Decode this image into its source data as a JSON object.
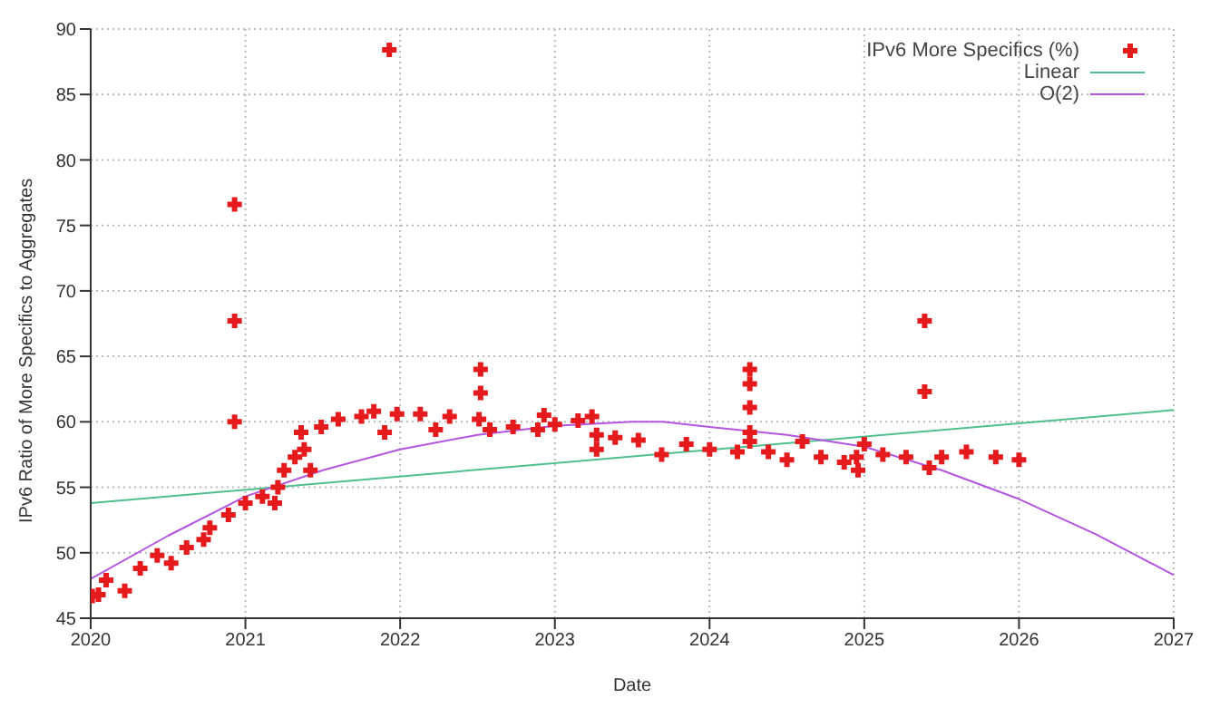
{
  "chart_data": {
    "type": "scatter",
    "xlabel": "Date",
    "ylabel": "IPv6 Ratio of More Specifics to Aggregates",
    "xlim": [
      2020,
      2027
    ],
    "xticks": [
      2020,
      2021,
      2022,
      2023,
      2024,
      2025,
      2026,
      2027
    ],
    "ylim": [
      45,
      90
    ],
    "yticks": [
      45,
      50,
      55,
      60,
      65,
      70,
      75,
      80,
      85,
      90
    ],
    "grid": true,
    "legend": "top right",
    "series": [
      {
        "name": "IPv6 More Specifics (%)",
        "marker": "cross",
        "color": "#e41a1c",
        "x": [
          2020.01,
          2020.05,
          2020.1,
          2020.22,
          2020.32,
          2020.43,
          2020.52,
          2020.62,
          2020.73,
          2020.77,
          2020.89,
          2020.93,
          2020.93,
          2020.93,
          2021.0,
          2021.11,
          2021.19,
          2021.21,
          2021.25,
          2021.32,
          2021.36,
          2021.38,
          2021.42,
          2021.49,
          2021.6,
          2021.75,
          2021.83,
          2021.9,
          2021.93,
          2021.98,
          2022.13,
          2022.23,
          2022.32,
          2022.51,
          2022.52,
          2022.52,
          2022.58,
          2022.73,
          2022.89,
          2022.93,
          2023.0,
          2023.15,
          2023.24,
          2023.27,
          2023.27,
          2023.39,
          2023.54,
          2023.69,
          2023.85,
          2024.0,
          2024.18,
          2024.26,
          2024.26,
          2024.26,
          2024.26,
          2024.26,
          2024.38,
          2024.5,
          2024.6,
          2024.72,
          2024.87,
          2024.95,
          2024.96,
          2025.0,
          2025.12,
          2025.27,
          2025.39,
          2025.39,
          2025.42,
          2025.5,
          2025.66,
          2025.85,
          2026.0
        ],
        "values": [
          46.7,
          46.8,
          47.9,
          47.1,
          48.8,
          49.8,
          49.2,
          50.4,
          51.0,
          51.9,
          52.9,
          76.6,
          67.7,
          60.0,
          53.8,
          54.3,
          53.8,
          55.0,
          56.3,
          57.3,
          59.2,
          57.9,
          56.3,
          59.6,
          60.2,
          60.4,
          60.8,
          59.2,
          88.4,
          60.6,
          60.6,
          59.4,
          60.4,
          60.2,
          64.0,
          62.2,
          59.4,
          59.6,
          59.4,
          60.5,
          59.8,
          60.1,
          60.4,
          59.0,
          57.9,
          58.8,
          58.6,
          57.5,
          58.3,
          57.9,
          57.7,
          58.5,
          59.2,
          61.1,
          62.9,
          64.0,
          57.7,
          57.1,
          58.5,
          57.3,
          56.9,
          57.3,
          56.3,
          58.3,
          57.5,
          57.3,
          67.7,
          62.3,
          56.5,
          57.3,
          57.7,
          57.3,
          57.1
        ]
      },
      {
        "name": "Linear",
        "type": "line",
        "marker": "none",
        "color": "#4fc08d",
        "x": [
          2020,
          2027
        ],
        "values": [
          53.8,
          60.9
        ]
      },
      {
        "name": "O(2)",
        "type": "line",
        "marker": "none",
        "color": "#b455e0",
        "x": [
          2020,
          2020.5,
          2021,
          2021.5,
          2022,
          2022.5,
          2023,
          2023.5,
          2023.7,
          2024,
          2024.5,
          2025,
          2025.5,
          2026,
          2026.5,
          2027
        ],
        "values": [
          48.0,
          51.3,
          54.3,
          56.3,
          57.9,
          59.0,
          59.7,
          60.0,
          60.0,
          59.6,
          59.0,
          58.1,
          56.3,
          54.1,
          51.4,
          48.3
        ]
      }
    ]
  }
}
